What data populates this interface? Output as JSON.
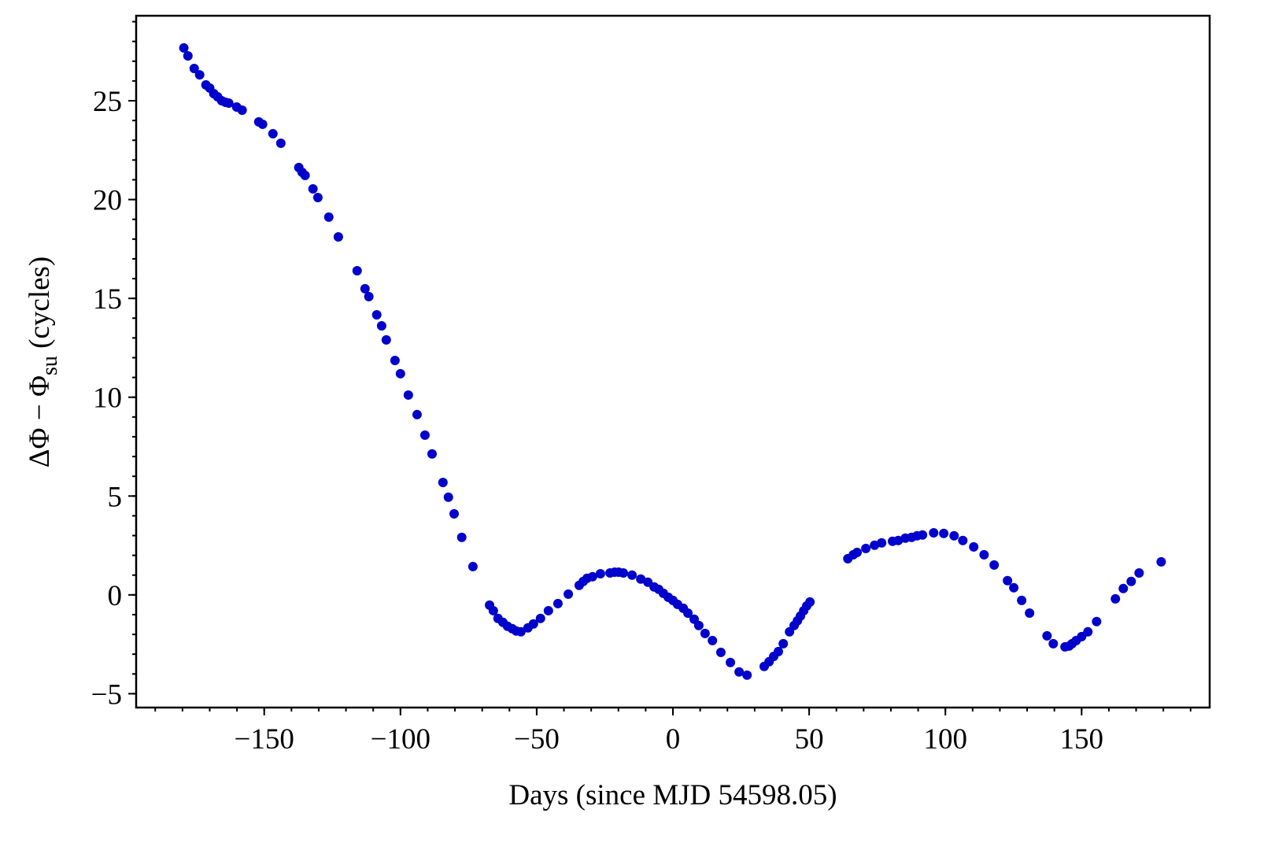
{
  "chart_data": {
    "type": "scatter",
    "xlabel": "Days (since MJD 54598.05)",
    "ylabel": {
      "main": "ΔΦ − Φ",
      "sub": "su",
      "unit": " (cycles)"
    },
    "color": "#0000cc",
    "minor_ticks": true,
    "xlim": [
      -197,
      197
    ],
    "ylim": [
      -5.7,
      29.3
    ],
    "xticks": [
      {
        "value": -150,
        "label": "−150"
      },
      {
        "value": -100,
        "label": "−100"
      },
      {
        "value": -50,
        "label": "−50"
      },
      0,
      50,
      100,
      150
    ],
    "yticks": [
      {
        "value": -5,
        "label": "−5"
      },
      0,
      5,
      10,
      15,
      20,
      25
    ],
    "x": [
      -179.5,
      -178.0,
      -175.7,
      -173.7,
      -171.4,
      -170.0,
      -168.5,
      -167.1,
      -165.6,
      -164.2,
      -163.0,
      -160.1,
      -158.1,
      -152.0,
      -150.6,
      -146.8,
      -143.9,
      -137.3,
      -136.1,
      -135.0,
      -132.1,
      -130.3,
      -126.3,
      -122.8,
      -115.9,
      -113.0,
      -111.6,
      -108.7,
      -106.9,
      -105.2,
      -102.0,
      -100.0,
      -97.1,
      -93.9,
      -91.0,
      -88.4,
      -84.4,
      -82.4,
      -80.3,
      -77.5,
      -73.4,
      -67.3,
      -65.9,
      -64.2,
      -62.4,
      -60.7,
      -59.0,
      -57.5,
      -55.8,
      -53.2,
      -51.2,
      -48.6,
      -45.7,
      -42.2,
      -38.4,
      -34.4,
      -32.9,
      -31.5,
      -29.5,
      -26.6,
      -23.1,
      -21.4,
      -19.9,
      -18.2,
      -15.0,
      -11.8,
      -9.2,
      -6.9,
      -5.2,
      -3.5,
      -1.7,
      0,
      1.7,
      3.8,
      5.5,
      7.8,
      9.5,
      11.8,
      14.5,
      17.6,
      21.1,
      24.3,
      27.2,
      33.5,
      35.3,
      37.0,
      38.7,
      40.5,
      42.8,
      44.5,
      45.7,
      46.8,
      48.0,
      49.1,
      50.3,
      64.2,
      66.2,
      67.6,
      70.8,
      74.0,
      76.6,
      80.6,
      82.7,
      85.3,
      87.6,
      89.6,
      91.6,
      95.7,
      99.4,
      103.2,
      106.4,
      110.4,
      114.2,
      117.9,
      122.8,
      125.1,
      128.0,
      130.9,
      137.3,
      139.6,
      143.9,
      145.4,
      146.5,
      148.0,
      150.0,
      152.3,
      155.5,
      162.4,
      165.3,
      168.2,
      171.1,
      179.2
    ],
    "values": [
      27.67,
      27.27,
      26.63,
      26.31,
      25.8,
      25.64,
      25.36,
      25.2,
      25.0,
      24.92,
      24.88,
      24.68,
      24.52,
      23.93,
      23.81,
      23.33,
      22.85,
      21.62,
      21.38,
      21.22,
      20.54,
      20.1,
      19.11,
      18.11,
      16.4,
      15.49,
      15.09,
      14.17,
      13.61,
      12.9,
      11.86,
      11.19,
      10.11,
      9.12,
      8.08,
      7.13,
      5.69,
      4.94,
      4.1,
      2.91,
      1.43,
      -0.52,
      -0.8,
      -1.19,
      -1.39,
      -1.59,
      -1.71,
      -1.83,
      -1.87,
      -1.67,
      -1.47,
      -1.19,
      -0.8,
      -0.44,
      0.04,
      0.48,
      0.68,
      0.84,
      0.92,
      1.07,
      1.11,
      1.15,
      1.15,
      1.11,
      1.0,
      0.8,
      0.64,
      0.4,
      0.28,
      0.08,
      -0.12,
      -0.28,
      -0.48,
      -0.68,
      -0.92,
      -1.23,
      -1.55,
      -1.95,
      -2.31,
      -2.91,
      -3.42,
      -3.9,
      -4.06,
      -3.62,
      -3.38,
      -3.11,
      -2.87,
      -2.47,
      -1.87,
      -1.55,
      -1.31,
      -1.07,
      -0.8,
      -0.56,
      -0.36,
      1.83,
      2.03,
      2.15,
      2.35,
      2.51,
      2.63,
      2.71,
      2.75,
      2.87,
      2.91,
      2.99,
      3.03,
      3.14,
      3.11,
      2.99,
      2.75,
      2.43,
      2.03,
      1.51,
      0.72,
      0.36,
      -0.28,
      -0.92,
      -2.07,
      -2.47,
      -2.63,
      -2.59,
      -2.47,
      -2.31,
      -2.11,
      -1.87,
      -1.35,
      -0.2,
      0.32,
      0.68,
      1.11,
      1.67
    ]
  }
}
